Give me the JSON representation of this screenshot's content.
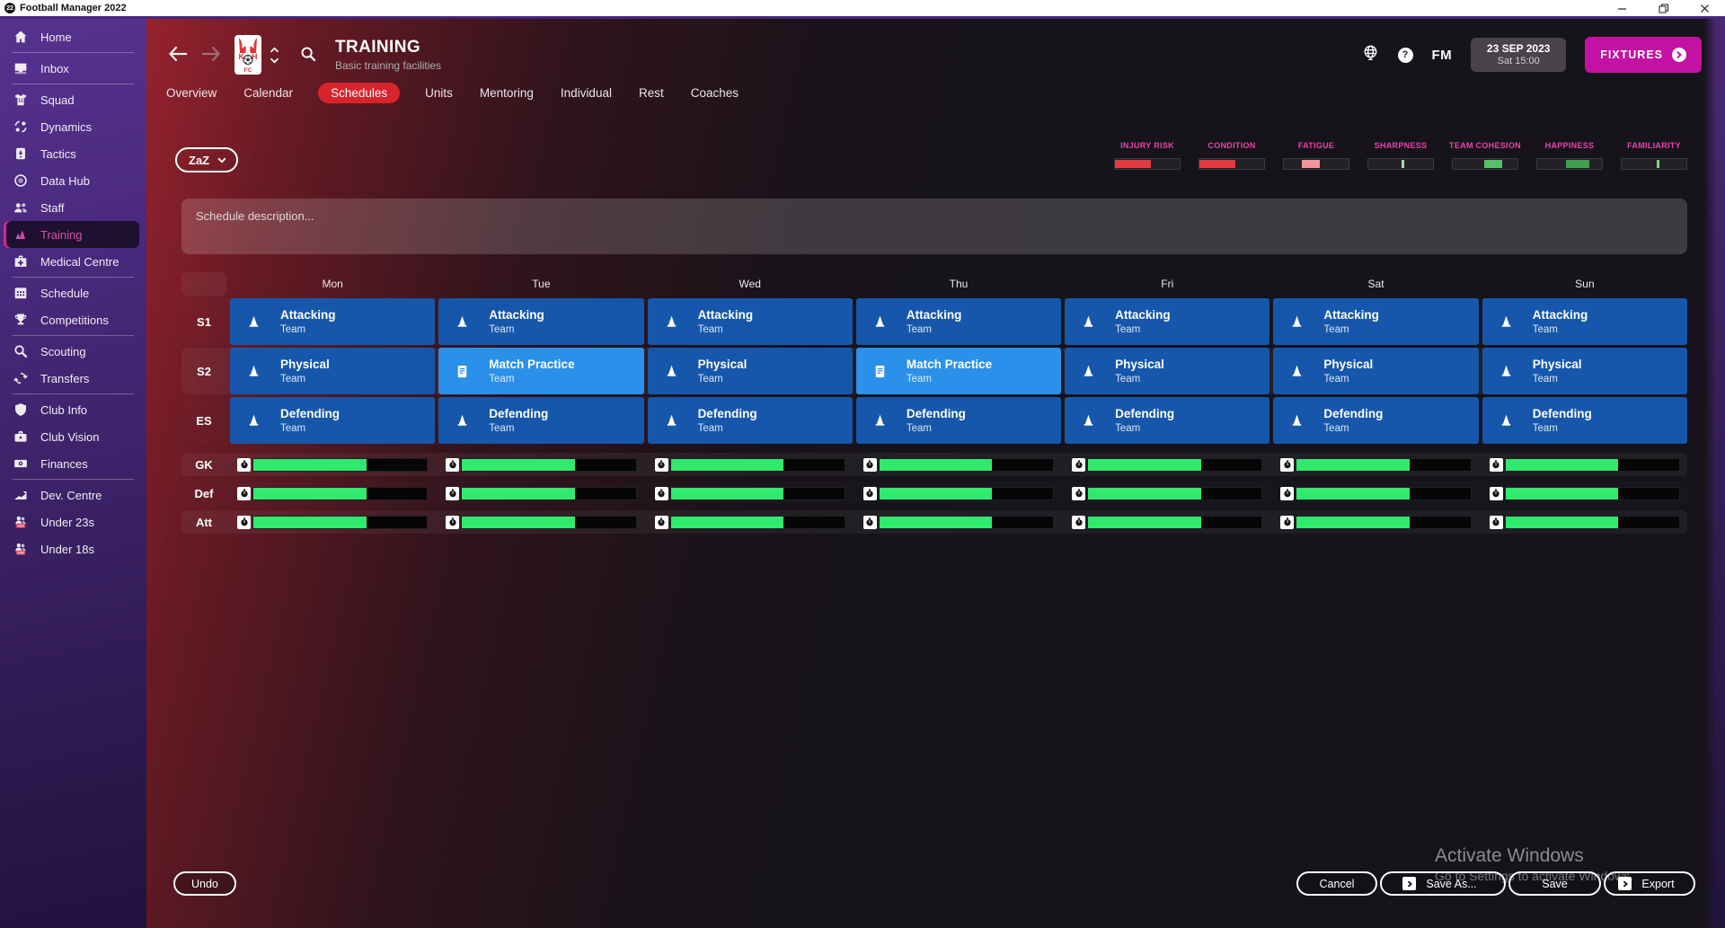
{
  "window": {
    "title": "Football Manager 2022",
    "logo": "22"
  },
  "sidebar": {
    "items": [
      {
        "id": "home",
        "label": "Home",
        "icon": "home",
        "divider_after": true
      },
      {
        "id": "inbox",
        "label": "Inbox",
        "icon": "inbox",
        "divider_after": true
      },
      {
        "id": "squad",
        "label": "Squad",
        "icon": "squad"
      },
      {
        "id": "dynamics",
        "label": "Dynamics",
        "icon": "dynamics"
      },
      {
        "id": "tactics",
        "label": "Tactics",
        "icon": "tactics"
      },
      {
        "id": "data-hub",
        "label": "Data Hub",
        "icon": "datahub"
      },
      {
        "id": "staff",
        "label": "Staff",
        "icon": "staff"
      },
      {
        "id": "training",
        "label": "Training",
        "icon": "training",
        "active": true
      },
      {
        "id": "medical-centre",
        "label": "Medical Centre",
        "icon": "medical",
        "divider_after": true
      },
      {
        "id": "schedule",
        "label": "Schedule",
        "icon": "schedule"
      },
      {
        "id": "competitions",
        "label": "Competitions",
        "icon": "competitions",
        "divider_after": true
      },
      {
        "id": "scouting",
        "label": "Scouting",
        "icon": "scouting"
      },
      {
        "id": "transfers",
        "label": "Transfers",
        "icon": "transfers",
        "divider_after": true
      },
      {
        "id": "club-info",
        "label": "Club Info",
        "icon": "clubinfo"
      },
      {
        "id": "club-vision",
        "label": "Club Vision",
        "icon": "clubvision"
      },
      {
        "id": "finances",
        "label": "Finances",
        "icon": "finances",
        "divider_after": true
      },
      {
        "id": "dev-centre",
        "label": "Dev. Centre",
        "icon": "devcentre"
      },
      {
        "id": "under-23s",
        "label": "Under 23s",
        "icon": "u23"
      },
      {
        "id": "under-18s",
        "label": "Under 18s",
        "icon": "u18"
      }
    ]
  },
  "header": {
    "title": "TRAINING",
    "subtitle": "Basic training facilities",
    "fm_label": "FM",
    "date_line1": "23 SEP 2023",
    "date_line2": "Sat 15:00",
    "fixtures_label": "FIXTURES"
  },
  "tabs": {
    "items": [
      {
        "label": "Overview"
      },
      {
        "label": "Calendar"
      },
      {
        "label": "Schedules",
        "active": true
      },
      {
        "label": "Units"
      },
      {
        "label": "Mentoring"
      },
      {
        "label": "Individual"
      },
      {
        "label": "Rest"
      },
      {
        "label": "Coaches"
      }
    ]
  },
  "filter": {
    "schedule_dropdown": "ZaZ"
  },
  "status_indicators": [
    {
      "label": "INJURY RISK",
      "start": 0,
      "end": 55,
      "color": "#e23b41"
    },
    {
      "label": "CONDITION",
      "start": 0,
      "end": 55,
      "color": "#e23b41"
    },
    {
      "label": "FATIGUE",
      "start": 28,
      "end": 55,
      "color": "#f0989c"
    },
    {
      "label": "SHARPNESS",
      "start": 52,
      "end": 56,
      "color": "#9fe0ac"
    },
    {
      "label": "TEAM COHESION",
      "start": 48,
      "end": 77,
      "color": "#57c168"
    },
    {
      "label": "HAPPINESS",
      "start": 44,
      "end": 81,
      "color": "#3f9e50"
    },
    {
      "label": "FAMILIARITY",
      "start": 54,
      "end": 58,
      "color": "#74d684"
    }
  ],
  "description": {
    "placeholder": "Schedule description..."
  },
  "schedule": {
    "days": [
      "Mon",
      "Tue",
      "Wed",
      "Thu",
      "Fri",
      "Sat",
      "Sun"
    ],
    "session_rows": [
      {
        "label": "S1",
        "cells": [
          {
            "title": "Attacking",
            "subtitle": "Team",
            "kind": "drill"
          },
          {
            "title": "Attacking",
            "subtitle": "Team",
            "kind": "drill"
          },
          {
            "title": "Attacking",
            "subtitle": "Team",
            "kind": "drill"
          },
          {
            "title": "Attacking",
            "subtitle": "Team",
            "kind": "drill"
          },
          {
            "title": "Attacking",
            "subtitle": "Team",
            "kind": "drill"
          },
          {
            "title": "Attacking",
            "subtitle": "Team",
            "kind": "drill"
          },
          {
            "title": "Attacking",
            "subtitle": "Team",
            "kind": "drill"
          }
        ]
      },
      {
        "label": "S2",
        "cells": [
          {
            "title": "Physical",
            "subtitle": "Team",
            "kind": "drill"
          },
          {
            "title": "Match Practice",
            "subtitle": "Team",
            "kind": "match"
          },
          {
            "title": "Physical",
            "subtitle": "Team",
            "kind": "drill"
          },
          {
            "title": "Match Practice",
            "subtitle": "Team",
            "kind": "match"
          },
          {
            "title": "Physical",
            "subtitle": "Team",
            "kind": "drill"
          },
          {
            "title": "Physical",
            "subtitle": "Team",
            "kind": "drill"
          },
          {
            "title": "Physical",
            "subtitle": "Team",
            "kind": "drill"
          }
        ]
      },
      {
        "label": "ES",
        "cells": [
          {
            "title": "Defending",
            "subtitle": "Team",
            "kind": "drill"
          },
          {
            "title": "Defending",
            "subtitle": "Team",
            "kind": "drill"
          },
          {
            "title": "Defending",
            "subtitle": "Team",
            "kind": "drill"
          },
          {
            "title": "Defending",
            "subtitle": "Team",
            "kind": "drill"
          },
          {
            "title": "Defending",
            "subtitle": "Team",
            "kind": "drill"
          },
          {
            "title": "Defending",
            "subtitle": "Team",
            "kind": "drill"
          },
          {
            "title": "Defending",
            "subtitle": "Team",
            "kind": "drill"
          }
        ]
      }
    ],
    "workload_rows": [
      {
        "label": "GK",
        "values": [
          65,
          65,
          65,
          65,
          65,
          65,
          65
        ]
      },
      {
        "label": "Def",
        "values": [
          65,
          65,
          65,
          65,
          65,
          65,
          65
        ]
      },
      {
        "label": "Att",
        "values": [
          65,
          65,
          65,
          65,
          65,
          65,
          65
        ]
      }
    ]
  },
  "footer": {
    "undo": "Undo",
    "cancel": "Cancel",
    "save_as": "Save As...",
    "save": "Save",
    "export": "Export"
  },
  "watermark": {
    "line1": "Activate Windows",
    "line2": "Go to Settings to activate Windows."
  },
  "colors": {
    "accent_pink": "#e743ad",
    "tab_selected_red": "#d7242c",
    "session_blue": "#1657ab",
    "match_blue": "#2b90e9",
    "bar_green": "#30e96e",
    "fixtures_magenta": "#c312a3"
  }
}
